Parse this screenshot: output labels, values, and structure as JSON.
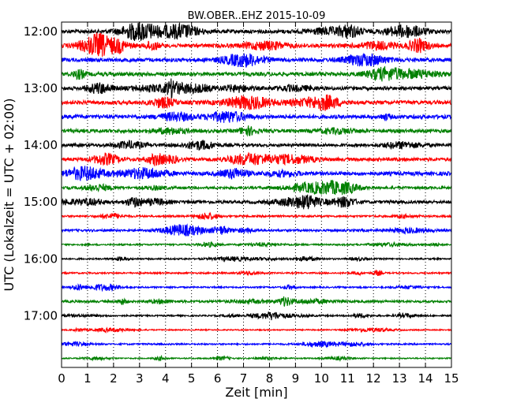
{
  "chart_data": {
    "type": "line",
    "title": "BW.OBER..EHZ 2015-10-09",
    "xlabel": "Zeit  [min]",
    "ylabel": "UTC (Lokalzeit = UTC + 02:00)",
    "xlim": [
      0,
      15
    ],
    "x_ticks": [
      "0",
      "1",
      "2",
      "3",
      "4",
      "5",
      "6",
      "7",
      "8",
      "9",
      "10",
      "11",
      "12",
      "13",
      "14",
      "15"
    ],
    "y_tick_labels": [
      "12:00",
      "13:00",
      "14:00",
      "15:00",
      "16:00",
      "17:00"
    ],
    "grid": "vertical dotted",
    "trace_interval_minutes": 15,
    "series_colors": [
      "#000000",
      "#ff0000",
      "#0000ff",
      "#008000"
    ],
    "traces": [
      {
        "start": "12:00",
        "amplitude": 1.0
      },
      {
        "start": "12:15",
        "amplitude": 1.0
      },
      {
        "start": "12:30",
        "amplitude": 1.0
      },
      {
        "start": "12:45",
        "amplitude": 1.0
      },
      {
        "start": "13:00",
        "amplitude": 0.9
      },
      {
        "start": "13:15",
        "amplitude": 1.0
      },
      {
        "start": "13:30",
        "amplitude": 1.0
      },
      {
        "start": "13:45",
        "amplitude": 0.9
      },
      {
        "start": "14:00",
        "amplitude": 0.8
      },
      {
        "start": "14:15",
        "amplitude": 0.9
      },
      {
        "start": "14:30",
        "amplitude": 1.0
      },
      {
        "start": "14:45",
        "amplitude": 0.7
      },
      {
        "start": "15:00",
        "amplitude": 0.8
      },
      {
        "start": "15:15",
        "amplitude": 0.5
      },
      {
        "start": "15:30",
        "amplitude": 0.6
      },
      {
        "start": "15:45",
        "amplitude": 0.4
      },
      {
        "start": "16:00",
        "amplitude": 0.4
      },
      {
        "start": "16:15",
        "amplitude": 0.4
      },
      {
        "start": "16:30",
        "amplitude": 0.4
      },
      {
        "start": "16:45",
        "amplitude": 0.6
      },
      {
        "start": "17:00",
        "amplitude": 0.4
      },
      {
        "start": "17:15",
        "amplitude": 0.3
      },
      {
        "start": "17:30",
        "amplitude": 0.4
      },
      {
        "start": "17:45",
        "amplitude": 0.3
      }
    ]
  }
}
